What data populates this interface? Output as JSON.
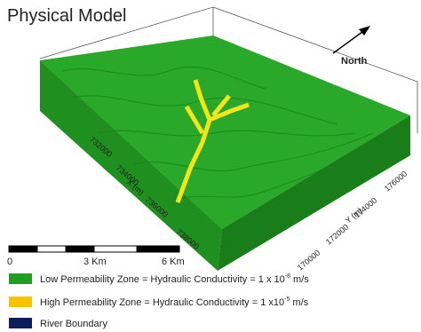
{
  "title": "Physical Model",
  "north_label": "North",
  "x_axis": {
    "label": "X (m)",
    "ticks": [
      "732000",
      "734000",
      "736000",
      "738000"
    ]
  },
  "y_axis": {
    "label": "Y (m)",
    "ticks": [
      "170000",
      "172000",
      "174000",
      "176000"
    ]
  },
  "scale_bar": {
    "labels": [
      "0",
      "3 Km",
      "6 Km"
    ]
  },
  "legend": [
    {
      "text": "Low Permeability Zone = Hydraulic Conductivity = 1 x 10",
      "exponent": "-8",
      "unit": " m/s"
    },
    {
      "text": "High Permeability Zone = Hydraulic Conductivity = 1 x10",
      "exponent": "-5",
      "unit": " m/s"
    },
    {
      "text": "River Boundary"
    }
  ]
}
